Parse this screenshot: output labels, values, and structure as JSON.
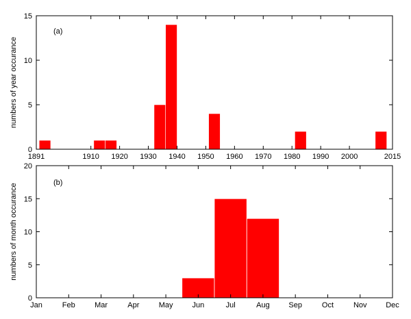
{
  "chart_data": [
    {
      "type": "bar",
      "panel_label": "(a)",
      "ylabel": "numbers of year occurance",
      "xlabel": "",
      "xlim": [
        1891,
        2015
      ],
      "ylim": [
        0,
        15
      ],
      "x_ticks": [
        1891,
        1910,
        1920,
        1930,
        1940,
        1950,
        1960,
        1970,
        1980,
        1990,
        2000,
        2015
      ],
      "y_ticks": [
        0,
        5,
        10,
        15
      ],
      "bin_width": 4,
      "bars": [
        {
          "x": 1892,
          "value": 1
        },
        {
          "x": 1911,
          "value": 1
        },
        {
          "x": 1915,
          "value": 1
        },
        {
          "x": 1932,
          "value": 5
        },
        {
          "x": 1936,
          "value": 14
        },
        {
          "x": 1951,
          "value": 4
        },
        {
          "x": 1981,
          "value": 2
        },
        {
          "x": 2009,
          "value": 2
        }
      ],
      "grid": false,
      "bar_color": "#ff0000"
    },
    {
      "type": "bar",
      "panel_label": "(b)",
      "ylabel": "numbers of month occurance",
      "xlabel": "",
      "categories": [
        "Jan",
        "Feb",
        "Mar",
        "Apr",
        "May",
        "Jun",
        "Jul",
        "Aug",
        "Sep",
        "Oct",
        "Nov",
        "Dec"
      ],
      "values": [
        0,
        0,
        0,
        0,
        0,
        3,
        15,
        12,
        0,
        0,
        0,
        0
      ],
      "ylim": [
        0,
        20
      ],
      "y_ticks": [
        0,
        5,
        10,
        15,
        20
      ],
      "grid": false,
      "bar_color": "#ff0000"
    }
  ]
}
